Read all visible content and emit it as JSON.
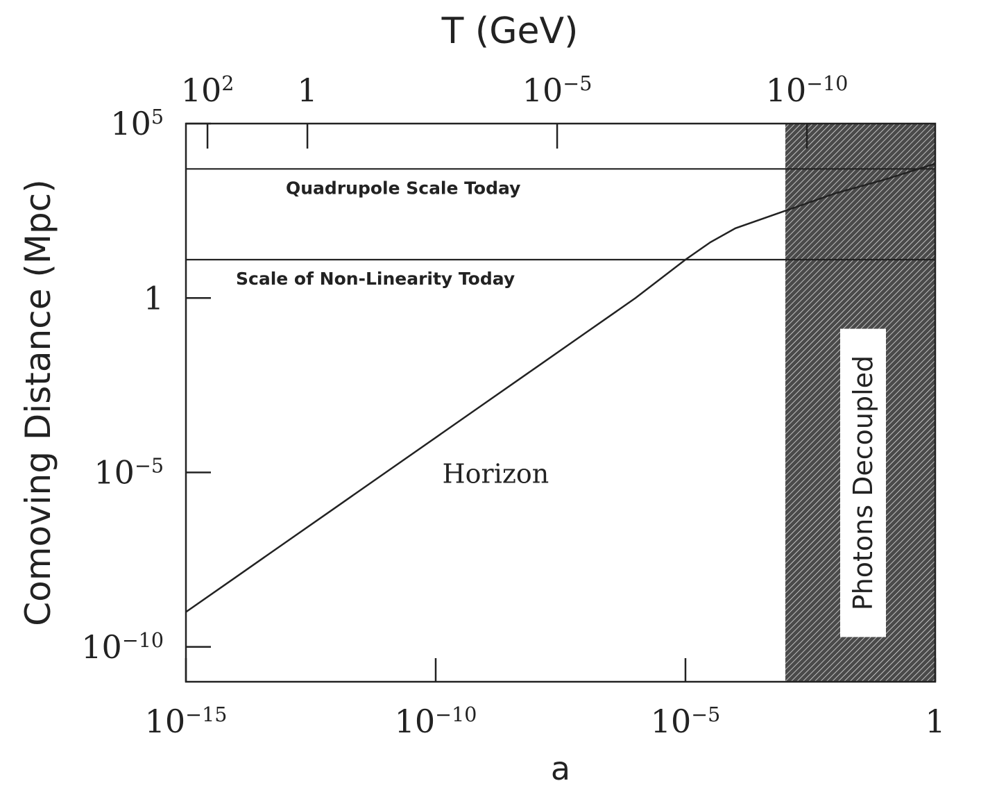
{
  "chart_data": {
    "type": "line",
    "title": "",
    "top_axis": {
      "label": "T (GeV)",
      "ticks": [
        {
          "T_exp": 2,
          "text": "10",
          "sup": "2"
        },
        {
          "T_exp": 0,
          "text": "1",
          "sup": ""
        },
        {
          "T_exp": -5,
          "text": "10",
          "sup": "−5"
        },
        {
          "T_exp": -10,
          "text": "10",
          "sup": "−10"
        }
      ]
    },
    "x_axis": {
      "label": "a",
      "scale": "log",
      "range_exp": [
        -15,
        0
      ],
      "ticks": [
        {
          "exp": -15,
          "text": "10",
          "sup": "−15"
        },
        {
          "exp": -10,
          "text": "10",
          "sup": "−10"
        },
        {
          "exp": -5,
          "text": "10",
          "sup": "−5"
        },
        {
          "exp": 0,
          "text": "1",
          "sup": ""
        }
      ]
    },
    "y_axis": {
      "label": "Comoving Distance (Mpc)",
      "scale": "log",
      "range_exp": [
        -11,
        5
      ],
      "ticks": [
        {
          "exp": 5,
          "text": "10",
          "sup": "5"
        },
        {
          "exp": 0,
          "text": "1",
          "sup": ""
        },
        {
          "exp": -5,
          "text": "10",
          "sup": "−5"
        },
        {
          "exp": -10,
          "text": "10",
          "sup": "−10"
        }
      ]
    },
    "series": [
      {
        "name": "",
        "label": "Horizon",
        "points_log10": [
          [
            -15,
            -9.0
          ],
          [
            -14,
            -8.0
          ],
          [
            -13,
            -7.0
          ],
          [
            -12,
            -6.0
          ],
          [
            -11,
            -5.0
          ],
          [
            -10,
            -4.0
          ],
          [
            -9,
            -3.0
          ],
          [
            -8,
            -2.0
          ],
          [
            -7,
            -1.0
          ],
          [
            -6,
            0.0
          ],
          [
            -5,
            1.1
          ],
          [
            -4.5,
            1.6
          ],
          [
            -4,
            2.0
          ],
          [
            -3,
            2.5
          ],
          [
            -2,
            3.0
          ],
          [
            -1,
            3.4
          ],
          [
            0,
            3.85
          ]
        ]
      }
    ],
    "hlines": [
      {
        "label": "Quadrupole Scale Today",
        "y_log10": 3.7
      },
      {
        "label": "Scale of Non-Linearity Today",
        "y_log10": 1.1
      }
    ],
    "shaded_region": {
      "label": "Photons Decoupled",
      "x_from_log10": -3,
      "x_to_log10": 0
    }
  }
}
